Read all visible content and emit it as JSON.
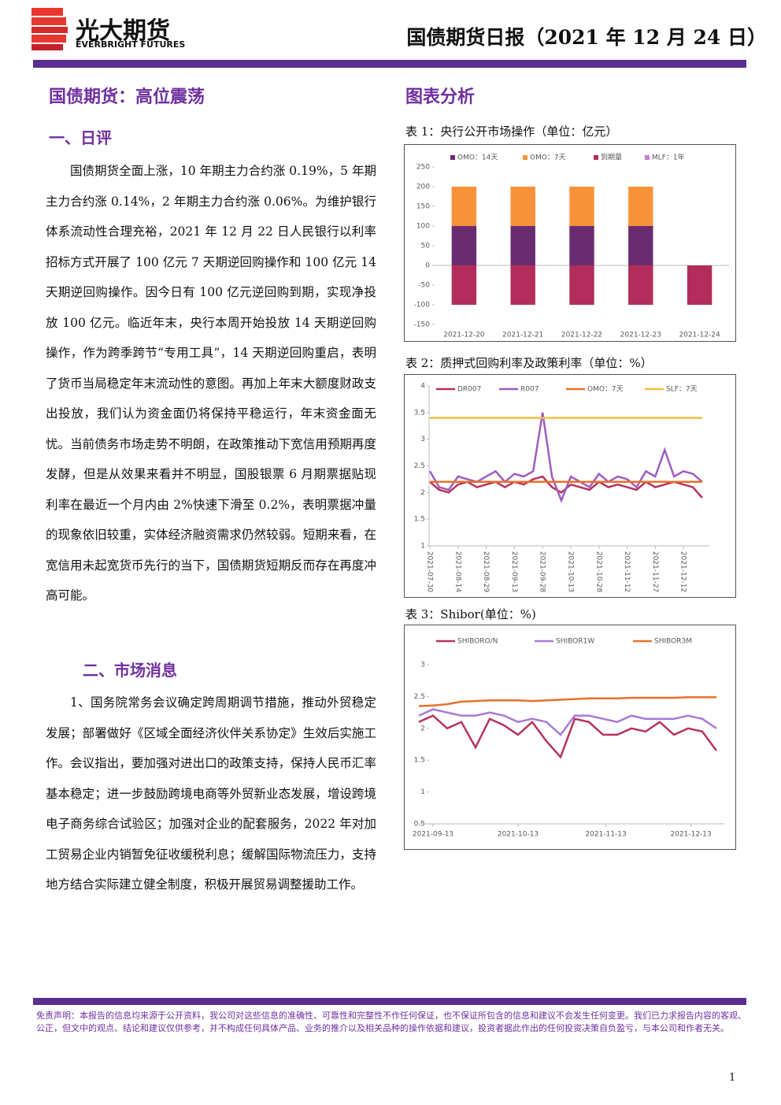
{
  "header": {
    "brand": "光大期货",
    "brand_en": "EVERBRIGHT FUTURES",
    "report_title": "国债期货日报（2021 年 12 月 24 日）"
  },
  "main_title": "国债期货：高位震荡",
  "sections": [
    {
      "title": "一、日评",
      "text": "国债期货全面上涨，10 年期主力合约涨 0.19%，5 年期主力合约涨 0.14%，2 年期主力合约涨 0.06%。为维护银行体系流动性合理充裕，2021 年 12 月 22 日人民银行以利率招标方式开展了 100 亿元 7 天期逆回购操作和 100 亿元 14 天期逆回购操作。因今日有 100 亿元逆回购到期，实现净投放 100 亿元。临近年末，央行本周开始投放 14 天期逆回购操作，作为跨季跨节“专用工具”，14 天期逆回购重启，表明了货币当局稳定年末流动性的意图。再加上年末大额度财政支出投放，我们认为资金面仍将保持平稳运行，年末资金面无忧。当前债务市场走势不明朗，在政策推动下宽信用预期再度发酵，但是从效果来看并不明显，国股银票 6 月期票据贴现利率在最近一个月内由 2%快速下滑至 0.2%，表明票据冲量的现象依旧较重，实体经济融资需求仍然较弱。短期来看，在宽信用未起宽货币先行的当下，国债期货短期反而存在再度冲高可能。"
    },
    {
      "title": "二、市场消息",
      "text": "1、国务院常务会议确定跨周期调节措施，推动外贸稳定发展；部署做好《区域全面经济伙伴关系协定》生效后实施工作。会议指出，要加强对进出口的政策支持，保持人民币汇率基本稳定；进一步鼓励跨境电商等外贸新业态发展，增设跨境电子商务综合试验区；加强对企业的配套服务，2022 年对加工贸易企业内销暂免征收缓税利息；缓解国际物流压力，支持地方结合实际建立健全制度，积极开展贸易调整援助工作。"
    }
  ],
  "chart_section_title": "图表分析",
  "chart_data": [
    {
      "type": "bar",
      "stacked": true,
      "title": "表 1：央行公开市场操作（单位：亿元）",
      "categories": [
        "2021-12-20",
        "2021-12-21",
        "2021-12-22",
        "2021-12-23",
        "2021-12-24"
      ],
      "series": [
        {
          "name": "OMO：14天",
          "color": "#6a2c70",
          "values": [
            100,
            100,
            100,
            100,
            0
          ]
        },
        {
          "name": "OMO：7天",
          "color": "#f7923a",
          "values": [
            100,
            100,
            100,
            100,
            0
          ]
        },
        {
          "name": "到期量",
          "color": "#b22d5b",
          "values": [
            -100,
            -100,
            -100,
            -100,
            -100
          ]
        },
        {
          "name": "MLF：1年",
          "color": "#c77dd6",
          "values": [
            0,
            0,
            0,
            0,
            0
          ]
        }
      ],
      "ylim": [
        -150,
        250
      ],
      "yticks": [
        -150,
        -100,
        -50,
        0,
        50,
        100,
        150,
        200,
        250
      ]
    },
    {
      "type": "line",
      "title": "表 2：质押式回购利率及政策利率（单位：%）",
      "x": [
        "2021-07-30",
        "2021-08-04",
        "2021-08-09",
        "2021-08-14",
        "2021-08-19",
        "2021-08-24",
        "2021-08-29",
        "2021-09-03",
        "2021-09-08",
        "2021-09-13",
        "2021-09-18",
        "2021-09-23",
        "2021-09-28",
        "2021-10-03",
        "2021-10-08",
        "2021-10-13",
        "2021-10-18",
        "2021-10-23",
        "2021-10-28",
        "2021-11-02",
        "2021-11-07",
        "2021-11-12",
        "2021-11-17",
        "2021-11-22",
        "2021-11-27",
        "2021-12-02",
        "2021-12-07",
        "2021-12-12",
        "2021-12-17",
        "2021-12-22"
      ],
      "series": [
        {
          "name": "DR007",
          "color": "#b5335c",
          "values": [
            2.2,
            2.05,
            2.0,
            2.15,
            2.2,
            2.1,
            2.15,
            2.2,
            2.1,
            2.2,
            2.15,
            2.25,
            2.3,
            2.1,
            2.0,
            2.15,
            2.1,
            2.05,
            2.2,
            2.1,
            2.15,
            2.1,
            2.05,
            2.2,
            2.1,
            2.15,
            2.2,
            2.15,
            2.1,
            1.9
          ]
        },
        {
          "name": "R007",
          "color": "#a05cc0",
          "values": [
            2.4,
            2.1,
            2.05,
            2.3,
            2.25,
            2.2,
            2.3,
            2.4,
            2.2,
            2.35,
            2.3,
            2.4,
            3.5,
            2.3,
            1.85,
            2.3,
            2.2,
            2.1,
            2.35,
            2.2,
            2.3,
            2.25,
            2.1,
            2.4,
            2.3,
            2.8,
            2.3,
            2.4,
            2.35,
            2.2
          ]
        },
        {
          "name": "OMO：7天",
          "color": "#e8702a",
          "values": [
            2.2,
            2.2,
            2.2,
            2.2,
            2.2,
            2.2,
            2.2,
            2.2,
            2.2,
            2.2,
            2.2,
            2.2,
            2.2,
            2.2,
            2.2,
            2.2,
            2.2,
            2.2,
            2.2,
            2.2,
            2.2,
            2.2,
            2.2,
            2.2,
            2.2,
            2.2,
            2.2,
            2.2,
            2.2,
            2.2
          ]
        },
        {
          "name": "SLF：7天",
          "color": "#f0c040",
          "values": [
            3.4,
            3.4,
            3.4,
            3.4,
            3.4,
            3.4,
            3.4,
            3.4,
            3.4,
            3.4,
            3.4,
            3.4,
            3.4,
            3.4,
            3.4,
            3.4,
            3.4,
            3.4,
            3.4,
            3.4,
            3.4,
            3.4,
            3.4,
            3.4,
            3.4,
            3.4,
            3.4,
            3.4,
            3.4,
            3.4
          ]
        }
      ],
      "xticks": [
        "2021-07-30",
        "2021-08-14",
        "2021-08-29",
        "2021-09-13",
        "2021-09-28",
        "2021-10-13",
        "2021-10-28",
        "2021-11-12",
        "2021-11-27",
        "2021-12-12"
      ],
      "ylim": [
        1,
        4
      ],
      "yticks": [
        1,
        1.5,
        2,
        2.5,
        3,
        3.5,
        4
      ]
    },
    {
      "type": "line",
      "title": "表 3：Shibor(单位：%)",
      "x": [
        "2021-09-08",
        "2021-09-13",
        "2021-09-18",
        "2021-09-23",
        "2021-09-28",
        "2021-10-03",
        "2021-10-08",
        "2021-10-13",
        "2021-10-18",
        "2021-10-23",
        "2021-10-28",
        "2021-11-02",
        "2021-11-07",
        "2021-11-12",
        "2021-11-17",
        "2021-11-22",
        "2021-11-27",
        "2021-12-02",
        "2021-12-07",
        "2021-12-12",
        "2021-12-17",
        "2021-12-22"
      ],
      "series": [
        {
          "name": "SHIBORO/N",
          "color": "#b5335c",
          "values": [
            2.1,
            2.2,
            2.0,
            2.1,
            1.7,
            2.15,
            2.05,
            1.9,
            2.1,
            1.8,
            1.55,
            2.15,
            2.1,
            1.9,
            1.9,
            2.0,
            1.95,
            2.1,
            1.9,
            2.0,
            1.95,
            1.65
          ]
        },
        {
          "name": "SHIBOR1W",
          "color": "#a77bd6",
          "values": [
            2.2,
            2.3,
            2.25,
            2.2,
            2.2,
            2.25,
            2.2,
            2.1,
            2.15,
            2.1,
            1.9,
            2.2,
            2.2,
            2.15,
            2.1,
            2.2,
            2.15,
            2.15,
            2.15,
            2.2,
            2.15,
            2.0
          ]
        },
        {
          "name": "SHIBOR3M",
          "color": "#e8702a",
          "values": [
            2.35,
            2.36,
            2.38,
            2.42,
            2.43,
            2.44,
            2.44,
            2.44,
            2.43,
            2.44,
            2.45,
            2.46,
            2.47,
            2.47,
            2.47,
            2.48,
            2.48,
            2.48,
            2.48,
            2.49,
            2.49,
            2.49
          ]
        }
      ],
      "xticks": [
        "2021-09-13",
        "2021-10-13",
        "2021-11-13",
        "2021-12-13"
      ],
      "ylim": [
        0.5,
        3
      ],
      "yticks": [
        0.5,
        1,
        1.5,
        2,
        2.5,
        3
      ]
    }
  ],
  "footer": {
    "disclaimer": "免责声明：本报告的信息均来源于公开资料，我公司对这些信息的准确性、可靠性和完整性不作任何保证，也不保证所包含的信息和建议不会发生任何变更。我们已力求报告内容的客观、公正，但文中的观点、结论和建议仅供参考，并不构成任何具体产品、业务的推介以及相关品种的操作依据和建议，投资者据此作出的任何投资决策自负盈亏，与本公司和作者无关。",
    "page": "1"
  }
}
